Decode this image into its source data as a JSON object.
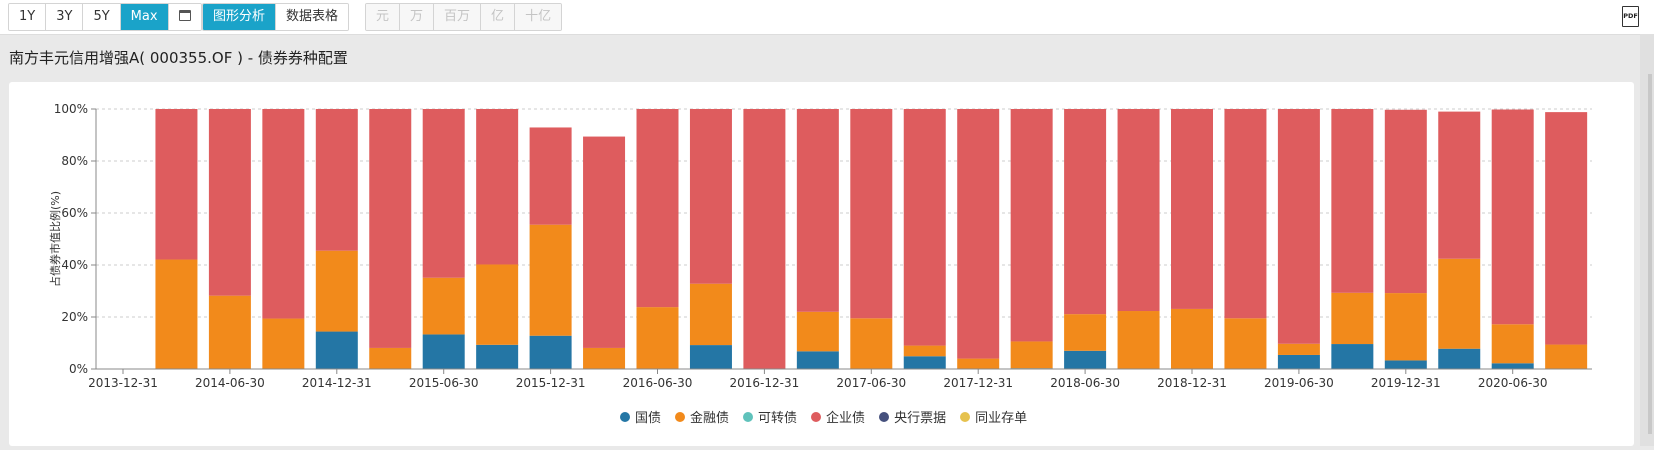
{
  "toolbar": {
    "range_buttons": [
      {
        "label": "1Y",
        "active": false
      },
      {
        "label": "3Y",
        "active": false
      },
      {
        "label": "5Y",
        "active": false
      },
      {
        "label": "Max",
        "active": true
      }
    ],
    "calendar_icon": "calendar-icon",
    "view_tabs": [
      {
        "label": "图形分析",
        "active": true
      },
      {
        "label": "数据表格",
        "active": false
      }
    ],
    "unit_buttons": [
      "元",
      "万",
      "百万",
      "亿",
      "十亿"
    ],
    "pdf_label": "PDF"
  },
  "title": "南方丰元信用增强A( 000355.OF ) - 债券券种配置",
  "legend": [
    {
      "name": "国债",
      "color": "#2476a5"
    },
    {
      "name": "金融债",
      "color": "#f28a1b"
    },
    {
      "name": "可转债",
      "color": "#5fc2bb"
    },
    {
      "name": "企业债",
      "color": "#de5c5e"
    },
    {
      "name": "央行票据",
      "color": "#45507d"
    },
    {
      "name": "同业存单",
      "color": "#e6c24e"
    }
  ],
  "chart_data": {
    "type": "bar",
    "stacked": true,
    "title": "南方丰元信用增强A( 000355.OF ) - 债券券种配置",
    "xlabel": "",
    "ylabel": "占债券市值比例(%)",
    "ylim": [
      0,
      100
    ],
    "yticks": [
      "0%",
      "20%",
      "40%",
      "60%",
      "80%",
      "100%"
    ],
    "grid": true,
    "legend_position": "bottom",
    "x_tick_labels": [
      "2013-12-31",
      "2014-06-30",
      "2014-12-31",
      "2015-06-30",
      "2015-12-31",
      "2016-06-30",
      "2016-12-31",
      "2017-06-30",
      "2017-12-31",
      "2018-06-30",
      "2018-12-31",
      "2019-06-30",
      "2019-12-31",
      "2020-06-30"
    ],
    "categories": [
      "2013-12-31",
      "2014-03-31",
      "2014-06-30",
      "2014-09-30",
      "2014-12-31",
      "2015-03-31",
      "2015-06-30",
      "2015-09-30",
      "2015-12-31",
      "2016-03-31",
      "2016-06-30",
      "2016-09-30",
      "2016-12-31",
      "2017-03-31",
      "2017-06-30",
      "2017-09-30",
      "2017-12-31",
      "2018-03-31",
      "2018-06-30",
      "2018-09-30",
      "2018-12-31",
      "2019-03-31",
      "2019-06-30",
      "2019-09-30",
      "2019-12-31",
      "2020-03-31",
      "2020-06-30",
      "2020-09-30"
    ],
    "series": [
      {
        "name": "国债",
        "color": "#2476a5",
        "values": [
          0,
          0,
          0,
          0,
          14.4,
          0,
          13.3,
          9.3,
          12.8,
          0,
          0,
          9.2,
          0,
          6.8,
          0,
          4.9,
          0,
          0.3,
          7.0,
          0,
          0,
          0,
          5.4,
          9.6,
          3.3,
          7.8,
          2.2,
          0
        ]
      },
      {
        "name": "金融债",
        "color": "#f28a1b",
        "values": [
          0,
          42.1,
          28.2,
          19.4,
          31.1,
          8.1,
          21.8,
          30.9,
          42.7,
          8.1,
          23.8,
          23.6,
          0,
          15.2,
          19.5,
          4.1,
          4.0,
          10.3,
          14.1,
          22.3,
          23.1,
          19.5,
          4.3,
          19.7,
          25.9,
          34.6,
          15.0,
          9.4
        ]
      },
      {
        "name": "可转债",
        "color": "#5fc2bb",
        "values": [
          0,
          0,
          0,
          0,
          0,
          0,
          0,
          0,
          0,
          0,
          0,
          0,
          0,
          0,
          0,
          0,
          0,
          0,
          0,
          0,
          0,
          0,
          0,
          0,
          0,
          0,
          0,
          0
        ]
      },
      {
        "name": "企业债",
        "color": "#de5c5e",
        "values": [
          0,
          57.9,
          71.8,
          80.6,
          54.5,
          91.9,
          64.9,
          59.8,
          37.4,
          81.3,
          76.2,
          67.2,
          100,
          78.0,
          80.5,
          91.0,
          96.0,
          89.4,
          78.9,
          77.7,
          76.9,
          80.5,
          90.3,
          70.7,
          70.5,
          56.6,
          82.6,
          89.4
        ]
      },
      {
        "name": "央行票据",
        "color": "#45507d",
        "values": [
          0,
          0,
          0,
          0,
          0,
          0,
          0,
          0,
          0,
          0,
          0,
          0,
          0,
          0,
          0,
          0,
          0,
          0,
          0,
          0,
          0,
          0,
          0,
          0,
          0,
          0,
          0,
          0
        ]
      },
      {
        "name": "同业存单",
        "color": "#e6c24e",
        "values": [
          0,
          0,
          0,
          0,
          0,
          0,
          0,
          0,
          0,
          0,
          0,
          0,
          0,
          0,
          0,
          0,
          0,
          0,
          0,
          0,
          0,
          0,
          0,
          0,
          0,
          0,
          0,
          0
        ]
      }
    ]
  }
}
